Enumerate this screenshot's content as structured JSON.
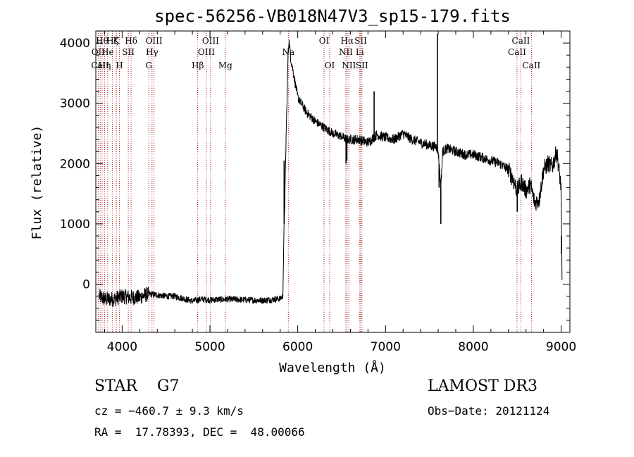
{
  "chart_data": {
    "type": "line",
    "title": "spec-56256-VB018N47V3_sp15-179.fits",
    "xlabel": "Wavelength (Å)",
    "ylabel": "Flux (relative)",
    "xlim": [
      3700,
      9100
    ],
    "ylim": [
      -800,
      4200
    ],
    "xticks": [
      4000,
      5000,
      6000,
      7000,
      8000,
      9000
    ],
    "yticks": [
      0,
      1000,
      2000,
      3000,
      4000
    ],
    "xtick_labels": [
      "4000",
      "5000",
      "6000",
      "7000",
      "8000",
      "9000"
    ],
    "ytick_labels": [
      "0",
      "1000",
      "2000",
      "3000",
      "4000"
    ],
    "line_color": "#000000",
    "marker_color": "#b22222",
    "spectrum_points": [
      [
        3740,
        -200
      ],
      [
        3800,
        -250
      ],
      [
        3900,
        -250
      ],
      [
        4000,
        -200
      ],
      [
        4100,
        -220
      ],
      [
        4200,
        -220
      ],
      [
        4300,
        -160
      ],
      [
        4400,
        -180
      ],
      [
        4500,
        -200
      ],
      [
        4600,
        -200
      ],
      [
        4700,
        -240
      ],
      [
        4800,
        -280
      ],
      [
        4900,
        -250
      ],
      [
        5000,
        -260
      ],
      [
        5200,
        -250
      ],
      [
        5400,
        -260
      ],
      [
        5600,
        -270
      ],
      [
        5800,
        -240
      ],
      [
        5830,
        -200
      ],
      [
        5845,
        1000
      ],
      [
        5855,
        1500
      ],
      [
        5870,
        2600
      ],
      [
        5890,
        3800
      ],
      [
        5900,
        4050
      ],
      [
        5920,
        3750
      ],
      [
        6000,
        3100
      ],
      [
        6100,
        2850
      ],
      [
        6200,
        2700
      ],
      [
        6300,
        2600
      ],
      [
        6400,
        2500
      ],
      [
        6500,
        2450
      ],
      [
        6560,
        2400
      ],
      [
        6700,
        2400
      ],
      [
        6800,
        2350
      ],
      [
        6900,
        2480
      ],
      [
        7000,
        2430
      ],
      [
        7100,
        2400
      ],
      [
        7200,
        2500
      ],
      [
        7300,
        2400
      ],
      [
        7400,
        2350
      ],
      [
        7500,
        2300
      ],
      [
        7580,
        2280
      ],
      [
        7600,
        2200
      ],
      [
        7630,
        1600
      ],
      [
        7650,
        2200
      ],
      [
        7700,
        2250
      ],
      [
        7800,
        2200
      ],
      [
        7900,
        2150
      ],
      [
        8000,
        2150
      ],
      [
        8100,
        2100
      ],
      [
        8200,
        2050
      ],
      [
        8300,
        2000
      ],
      [
        8400,
        1900
      ],
      [
        8450,
        1750
      ],
      [
        8500,
        1550
      ],
      [
        8550,
        1700
      ],
      [
        8600,
        1550
      ],
      [
        8650,
        1650
      ],
      [
        8700,
        1350
      ],
      [
        8750,
        1400
      ],
      [
        8800,
        1900
      ],
      [
        8850,
        2000
      ],
      [
        8900,
        1950
      ],
      [
        8950,
        2200
      ],
      [
        9000,
        1600
      ],
      [
        9010,
        0
      ]
    ],
    "spikes": [
      {
        "x": 5845,
        "y": 2050
      },
      {
        "x": 5850,
        "y": 1300
      },
      {
        "x": 6550,
        "y": 2000
      },
      {
        "x": 6560,
        "y": 2050
      },
      {
        "x": 6870,
        "y": 3200
      },
      {
        "x": 7590,
        "y": 4150
      },
      {
        "x": 7610,
        "y": 1600
      },
      {
        "x": 7630,
        "y": 1000
      },
      {
        "x": 8500,
        "y": 1200
      },
      {
        "x": 9005,
        "y": 500
      }
    ],
    "line_markers": [
      {
        "wavelength": 3727,
        "label": "OII",
        "row": 2
      },
      {
        "wavelength": 3750,
        "label": "CaII",
        "row": 3
      },
      {
        "wavelength": 3772,
        "label": "Hθ",
        "row": 1
      },
      {
        "wavelength": 3800,
        "label": "Hη",
        "row": 3
      },
      {
        "wavelength": 3835,
        "label": "He",
        "row": 2
      },
      {
        "wavelength": 3889,
        "label": "Hζ",
        "row": 1
      },
      {
        "wavelength": 3934,
        "label": "K",
        "row": 1
      },
      {
        "wavelength": 3969,
        "label": "H",
        "row": 3
      },
      {
        "wavelength": 4070,
        "label": "SII",
        "row": 2
      },
      {
        "wavelength": 4102,
        "label": "Hδ",
        "row": 1
      },
      {
        "wavelength": 4304,
        "label": "G",
        "row": 3
      },
      {
        "wavelength": 4340,
        "label": "Hγ",
        "row": 2
      },
      {
        "wavelength": 4363,
        "label": "OIII",
        "row": 1
      },
      {
        "wavelength": 4861,
        "label": "Hβ",
        "row": 3
      },
      {
        "wavelength": 4959,
        "label": "OIII",
        "row": 2
      },
      {
        "wavelength": 5007,
        "label": "OIII",
        "row": 1
      },
      {
        "wavelength": 5175,
        "label": "Mg",
        "row": 3
      },
      {
        "wavelength": 5893,
        "label": "Na",
        "row": 2
      },
      {
        "wavelength": 6300,
        "label": "OI",
        "row": 1
      },
      {
        "wavelength": 6364,
        "label": "OI",
        "row": 3
      },
      {
        "wavelength": 6548,
        "label": "NII",
        "row": 2
      },
      {
        "wavelength": 6563,
        "label": "Hα",
        "row": 1
      },
      {
        "wavelength": 6583,
        "label": "NII",
        "row": 3
      },
      {
        "wavelength": 6707,
        "label": "Li",
        "row": 2
      },
      {
        "wavelength": 6717,
        "label": "SII",
        "row": 1
      },
      {
        "wavelength": 6731,
        "label": "SII",
        "row": 3
      },
      {
        "wavelength": 8498,
        "label": "CaII",
        "row": 2
      },
      {
        "wavelength": 8542,
        "label": "CaII",
        "row": 1
      },
      {
        "wavelength": 8662,
        "label": "CaII",
        "row": 3
      }
    ]
  },
  "info": {
    "object_class": "STAR    G7",
    "survey": "LAMOST DR3",
    "redshift": "cz = −460.7 ± 9.3 km/s",
    "obs_date": "Obs−Date: 20121124",
    "radec": "RA =  17.78393, DEC =  48.00066"
  }
}
